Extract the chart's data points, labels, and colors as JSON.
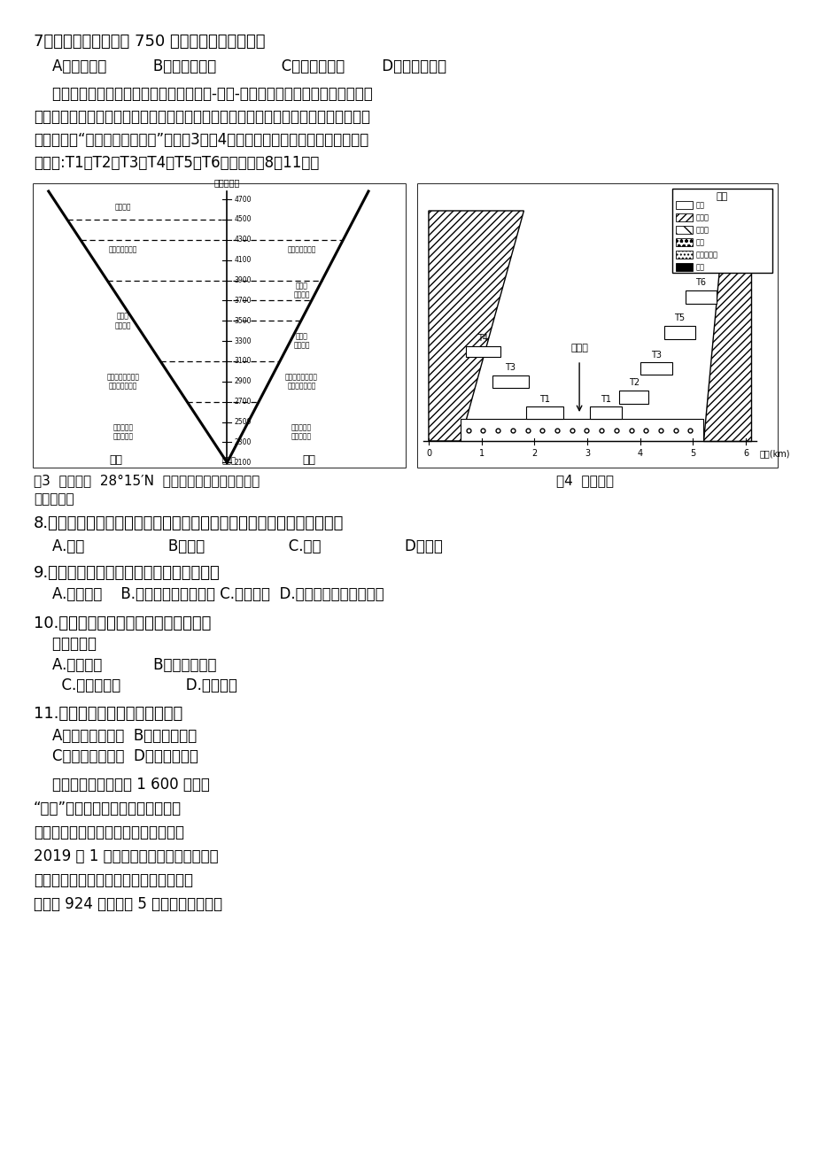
{
  "page_bg": "#ffffff",
  "text_color": "#000000",
  "fig_width": 9.2,
  "fig_height": 13.02,
  "q7": "7．该公路北端海拔约 750 米，其所处的自然带是",
  "q7_opts": "    A．针叶林带          B．山地草原带              C．高寒草甸带        D．灌丛荒漠带",
  "para1_lines": [
    "    一般从山谷到山顶垂直自然带呈现为乔木-灌木-草甸的渐变规律，但在横断山区干",
    "热的河谷，谷底是灌丛或荒漠草地，森林一般生长在山顶或半山腰，有的地理学家把这",
    "种现象称为“倒置的垂直自然带”，如图3。图4为该河段两岸分布形成于不同年代的",
    "平坦面:T1、T2、T3、T4、T5、T6。据此完扐8～11题。"
  ],
  "fig3_caption1": "图3  金沙江（  28°15′N  ）两岸的垂直自然带分布图",
  "fig4_caption1": "图4  金沙江某",
  "fig34_caption2": "河段的断面",
  "q8": "8.影响金沙江东坡寒温带暗针叶林分布上限的海拔比西坡低的主要因素是",
  "q8_opts": "    A.坡度                  B．海拔                  C.水分                  D．热量",
  "q9": "9.金沙江河谷气候干旱，是因为金沙江河谷",
  "q9_opts": "    A.地势低平    B.地处背风坡的雨影区 C.植被稀少  D.受副热带高气压带控制",
  "q10": "10.金沙江某河段两岸出现黄土，由此可",
  "q10_sub": "    推出该区域",
  "q10_a": "    A.干热环境           B．河流流量大",
  "q10_b": "      C.河流流速快              D.风力较大",
  "q11": "11.金沙江某河段地貌的形成原因",
  "q11_a": "    A．地壳持续上升  B．向两侧侵蚀",
  "q11_b": "    C．地壳间歇上升  D．向源头侵蚀",
  "burundi": [
    "    布隆迪全国平均海拔 1 600 米，有",
    "“山国”之称，经济落后，粮食不能自",
    "给，但具有种植水稻的优越自然条件。",
    "2019 年 1 月，中国农民承包的位于布隆",
    "迪布班扎省的水稻示范田喜获丰收，最高",
    "亩产达 924 千克。图 5 示意布隆迪位置。"
  ]
}
